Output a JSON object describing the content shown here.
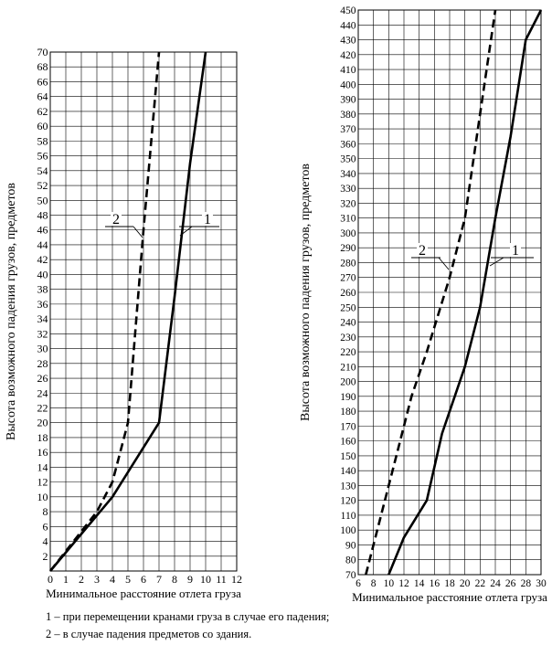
{
  "chart_data": [
    {
      "type": "line",
      "ylabel": "Высота возможного падения грузов, предметов",
      "xlabel": "Минимальное расстояние отлета груза",
      "xlim": [
        0,
        12
      ],
      "ylim": [
        0,
        70
      ],
      "x_ticks": [
        0,
        1,
        2,
        3,
        4,
        5,
        6,
        7,
        8,
        9,
        10,
        11,
        12
      ],
      "y_ticks": [
        2,
        4,
        6,
        8,
        10,
        12,
        14,
        16,
        18,
        20,
        22,
        24,
        26,
        28,
        30,
        32,
        34,
        36,
        38,
        40,
        42,
        44,
        46,
        48,
        50,
        52,
        54,
        56,
        58,
        60,
        62,
        64,
        66,
        68,
        70
      ],
      "grid": true,
      "series": [
        {
          "name": "1",
          "style": "solid",
          "points": [
            [
              0,
              0
            ],
            [
              4,
              10
            ],
            [
              7,
              20
            ],
            [
              8,
              37
            ],
            [
              9,
              55
            ],
            [
              10,
              70
            ]
          ]
        },
        {
          "name": "2",
          "style": "dashed",
          "points": [
            [
              0,
              0
            ],
            [
              3,
              8
            ],
            [
              4,
              12
            ],
            [
              5,
              20
            ],
            [
              6,
              46
            ],
            [
              7,
              70
            ]
          ]
        }
      ],
      "annotations": [
        {
          "text": "1",
          "series": "1"
        },
        {
          "text": "2",
          "series": "2"
        }
      ]
    },
    {
      "type": "line",
      "ylabel": "Высота возможного падения грузов, предметов",
      "xlabel": "Минимальное расстояние отлета груза",
      "xlim": [
        6,
        30
      ],
      "ylim": [
        70,
        450
      ],
      "x_ticks": [
        6,
        8,
        10,
        12,
        14,
        16,
        18,
        20,
        22,
        24,
        26,
        28,
        30
      ],
      "y_ticks": [
        70,
        80,
        90,
        100,
        110,
        120,
        130,
        140,
        150,
        160,
        170,
        180,
        190,
        200,
        210,
        220,
        230,
        240,
        250,
        260,
        270,
        280,
        290,
        300,
        310,
        320,
        330,
        340,
        350,
        360,
        370,
        380,
        390,
        400,
        410,
        420,
        430,
        440,
        450
      ],
      "grid": true,
      "series": [
        {
          "name": "1",
          "style": "solid",
          "points": [
            [
              10,
              70
            ],
            [
              12,
              95
            ],
            [
              15,
              120
            ],
            [
              17,
              165
            ],
            [
              20,
              210
            ],
            [
              22,
              250
            ],
            [
              24,
              310
            ],
            [
              26,
              365
            ],
            [
              28,
              430
            ],
            [
              30,
              450
            ]
          ]
        },
        {
          "name": "2",
          "style": "dashed",
          "points": [
            [
              7,
              70
            ],
            [
              9,
              110
            ],
            [
              11,
              150
            ],
            [
              13,
              190
            ],
            [
              15,
              220
            ],
            [
              18,
              270
            ],
            [
              20,
              310
            ],
            [
              22,
              380
            ],
            [
              24,
              450
            ]
          ]
        }
      ],
      "annotations": [
        {
          "text": "1",
          "series": "1"
        },
        {
          "text": "2",
          "series": "2"
        }
      ]
    }
  ],
  "footnotes": [
    "1 – при перемещении кранами груза в случае его падения;",
    "2 – в случае падения предметов со здания."
  ]
}
